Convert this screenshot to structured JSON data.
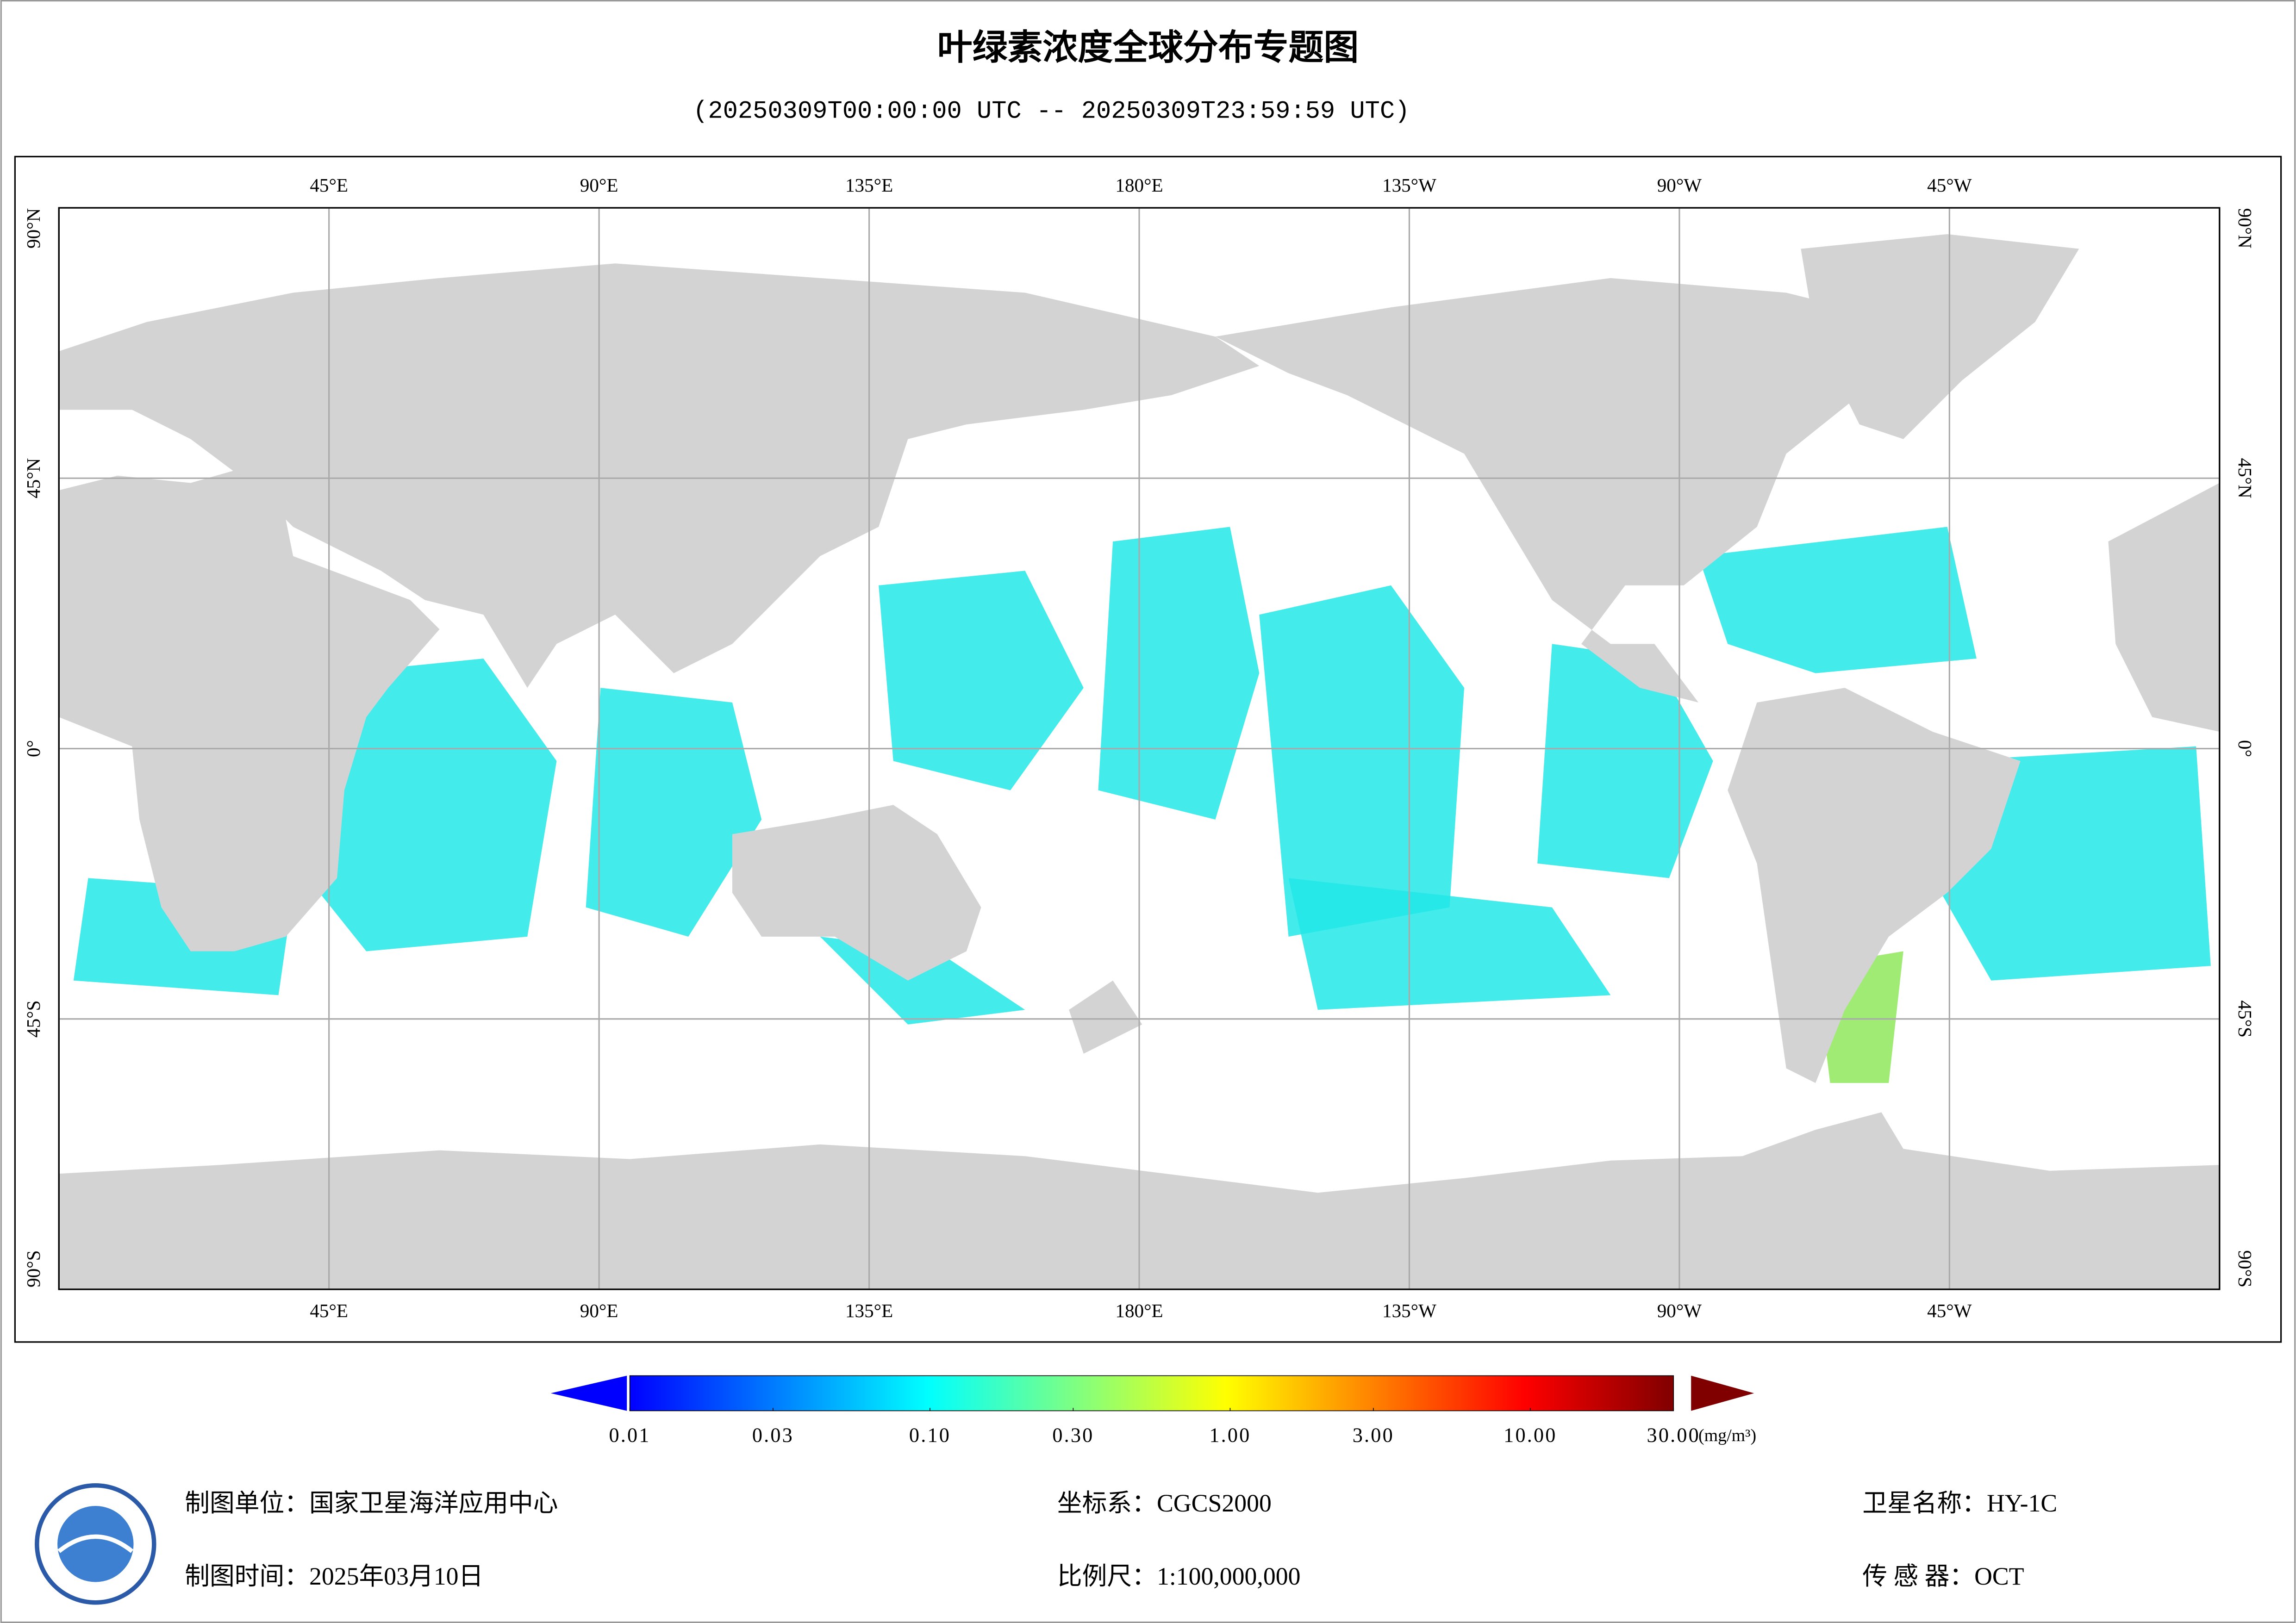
{
  "map": {
    "title": "叶绿素浓度全球分布专题图",
    "subtitle": "(20250309T00:00:00 UTC -- 20250309T23:59:59 UTC)",
    "lon_range": [
      0,
      360
    ],
    "lat_range": [
      90,
      -90
    ],
    "lon_ticks": [
      {
        "value": 45,
        "label": "45°E"
      },
      {
        "value": 90,
        "label": "90°E"
      },
      {
        "value": 135,
        "label": "135°E"
      },
      {
        "value": 180,
        "label": "180°E"
      },
      {
        "value": -135,
        "label": "135°W"
      },
      {
        "value": -90,
        "label": "90°W"
      },
      {
        "value": -45,
        "label": "45°W"
      }
    ],
    "lat_ticks": [
      {
        "value": 90,
        "label": "90°N"
      },
      {
        "value": 45,
        "label": "45°N"
      },
      {
        "value": 0,
        "label": "0°"
      },
      {
        "value": -45,
        "label": "45°S"
      },
      {
        "value": -90,
        "label": "90°S"
      }
    ],
    "grid": true,
    "colorbar": {
      "log_scale": true,
      "range": [
        0.01,
        30
      ],
      "colors": [
        "#0000ff",
        "#0080ff",
        "#00ffff",
        "#80ff80",
        "#ffff00",
        "#ff8000",
        "#ff0000",
        "#800000"
      ],
      "ticks": [
        0.01,
        0.03,
        {
          "value": 0.1,
          "label": "0.10"
        },
        {
          "value": 0.3,
          "label": "0.30"
        },
        {
          "value": 1,
          "label": "1.00"
        },
        {
          "value": 3,
          "label": "3.00"
        },
        {
          "value": 10,
          "label": "10.00"
        },
        {
          "value": 30,
          "label": "30.00"
        }
      ],
      "unit": "(mg/m³)"
    }
  },
  "footer": {
    "producer": {
      "label": "制图单位：",
      "value": "国家卫星海洋应用中心"
    },
    "date": {
      "label": "制图时间：",
      "value": "2025年03月10日"
    },
    "crs": {
      "label": "坐标系：",
      "value": "CGCS2000"
    },
    "scale": {
      "label": "比例尺：",
      "value": "1:100,000,000"
    },
    "satellite": {
      "label": "卫星名称：",
      "value": "HY-1C"
    },
    "sensor": {
      "label": "传 感 器：",
      "value": "OCT"
    }
  }
}
